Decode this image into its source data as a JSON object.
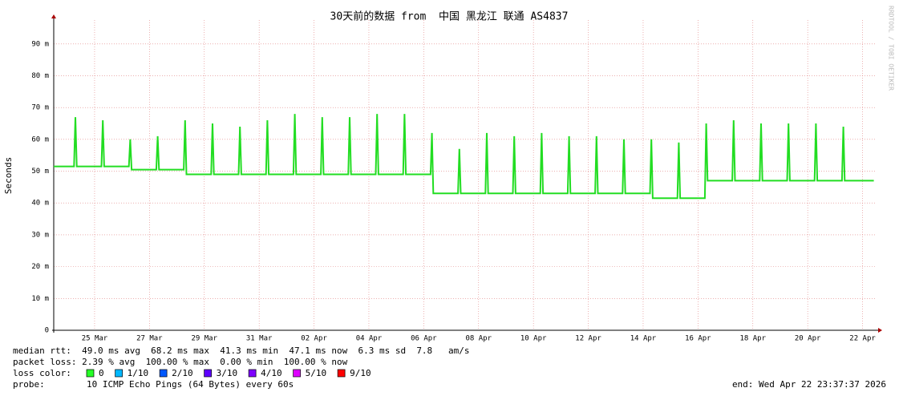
{
  "chart_data": {
    "type": "line",
    "title": "30天前的数据 from  中国 黑龙江 联通 AS4837",
    "y_label": "Seconds",
    "watermark": "RRDTOOL / TOBI OETIKER",
    "xlim": [
      0,
      30
    ],
    "xticks": [
      {
        "value": 1.49,
        "label": "25 Mar"
      },
      {
        "value": 3.49,
        "label": "27 Mar"
      },
      {
        "value": 5.49,
        "label": "29 Mar"
      },
      {
        "value": 7.49,
        "label": "31 Mar"
      },
      {
        "value": 9.49,
        "label": "02 Apr"
      },
      {
        "value": 11.49,
        "label": "04 Apr"
      },
      {
        "value": 13.49,
        "label": "06 Apr"
      },
      {
        "value": 15.49,
        "label": "08 Apr"
      },
      {
        "value": 17.49,
        "label": "10 Apr"
      },
      {
        "value": 19.49,
        "label": "12 Apr"
      },
      {
        "value": 21.49,
        "label": "14 Apr"
      },
      {
        "value": 23.49,
        "label": "16 Apr"
      },
      {
        "value": 25.49,
        "label": "18 Apr"
      },
      {
        "value": 27.49,
        "label": "20 Apr"
      },
      {
        "value": 29.49,
        "label": "22 Apr"
      }
    ],
    "ylim": [
      0,
      0.0975
    ],
    "yticks": [
      0,
      {
        "value": 0.01,
        "label": "10 m"
      },
      {
        "value": 0.02,
        "label": "20 m"
      },
      {
        "value": 0.03,
        "label": "30 m"
      },
      {
        "value": 0.04,
        "label": "40 m"
      },
      {
        "value": 0.05,
        "label": "50 m"
      },
      {
        "value": 0.06,
        "label": "60 m"
      },
      {
        "value": 0.07,
        "label": "70 m"
      },
      {
        "value": 0.08,
        "label": "80 m"
      },
      {
        "value": 0.09,
        "label": "90 m"
      }
    ],
    "grid": true,
    "x": [
      0,
      0.74,
      0.79,
      0.84,
      1.74,
      1.79,
      1.84,
      2.74,
      2.79,
      2.84,
      3.74,
      3.79,
      3.84,
      4.74,
      4.79,
      4.84,
      5.74,
      5.79,
      5.84,
      6.74,
      6.79,
      6.84,
      7.74,
      7.79,
      7.84,
      8.74,
      8.79,
      8.84,
      9.74,
      9.79,
      9.84,
      10.74,
      10.79,
      10.84,
      11.74,
      11.79,
      11.84,
      12.74,
      12.79,
      12.84,
      13.74,
      13.79,
      13.84,
      14.74,
      14.79,
      14.84,
      15.74,
      15.79,
      15.84,
      16.74,
      16.79,
      16.84,
      17.74,
      17.79,
      17.84,
      18.74,
      18.79,
      18.84,
      19.74,
      19.79,
      19.84,
      20.74,
      20.79,
      20.84,
      21.74,
      21.79,
      21.84,
      22.74,
      22.79,
      22.84,
      23.74,
      23.79,
      23.84,
      24.74,
      24.79,
      24.84,
      25.74,
      25.79,
      25.84,
      26.74,
      26.79,
      26.84,
      27.74,
      27.79,
      27.84,
      28.74,
      28.79,
      28.84,
      29.9
    ],
    "series": [
      {
        "name": "median rtt",
        "color": "#22dd22",
        "values": [
          0.0515,
          0.0515,
          0.067,
          0.0515,
          0.0515,
          0.066,
          0.0515,
          0.0515,
          0.06,
          0.0505,
          0.0505,
          0.061,
          0.0505,
          0.0505,
          0.066,
          0.049,
          0.049,
          0.065,
          0.049,
          0.049,
          0.064,
          0.049,
          0.049,
          0.066,
          0.049,
          0.049,
          0.068,
          0.049,
          0.049,
          0.067,
          0.049,
          0.049,
          0.067,
          0.049,
          0.049,
          0.068,
          0.049,
          0.049,
          0.068,
          0.049,
          0.049,
          0.062,
          0.043,
          0.043,
          0.057,
          0.043,
          0.043,
          0.062,
          0.043,
          0.043,
          0.061,
          0.043,
          0.043,
          0.062,
          0.043,
          0.043,
          0.061,
          0.043,
          0.043,
          0.061,
          0.043,
          0.043,
          0.06,
          0.043,
          0.043,
          0.06,
          0.0415,
          0.0415,
          0.059,
          0.0415,
          0.0415,
          0.065,
          0.047,
          0.047,
          0.066,
          0.047,
          0.047,
          0.065,
          0.047,
          0.047,
          0.065,
          0.047,
          0.047,
          0.065,
          0.047,
          0.047,
          0.064,
          0.047,
          0.047
        ]
      }
    ],
    "stats": [
      "median rtt:  49.0 ms avg  68.2 ms max  41.3 ms min  47.1 ms now  6.3 ms sd  7.8   am/s",
      "packet loss: 2.39 % avg  100.00 % max  0.00 % min  100.00 % now"
    ],
    "loss_label": "loss color:",
    "loss_colors": [
      {
        "name": "0",
        "color": "#26ff26"
      },
      {
        "name": "1/10",
        "color": "#00b8ff"
      },
      {
        "name": "2/10",
        "color": "#0059ff"
      },
      {
        "name": "3/10",
        "color": "#5e00ff"
      },
      {
        "name": "4/10",
        "color": "#7e00ff"
      },
      {
        "name": "5/10",
        "color": "#dd00ff"
      },
      {
        "name": "9/10",
        "color": "#ff0000"
      }
    ],
    "probe_label": "probe:",
    "probe": "10 ICMP Echo Pings (64 Bytes) every 60s",
    "end": "end: Wed Apr 22 23:37:37 2026"
  }
}
